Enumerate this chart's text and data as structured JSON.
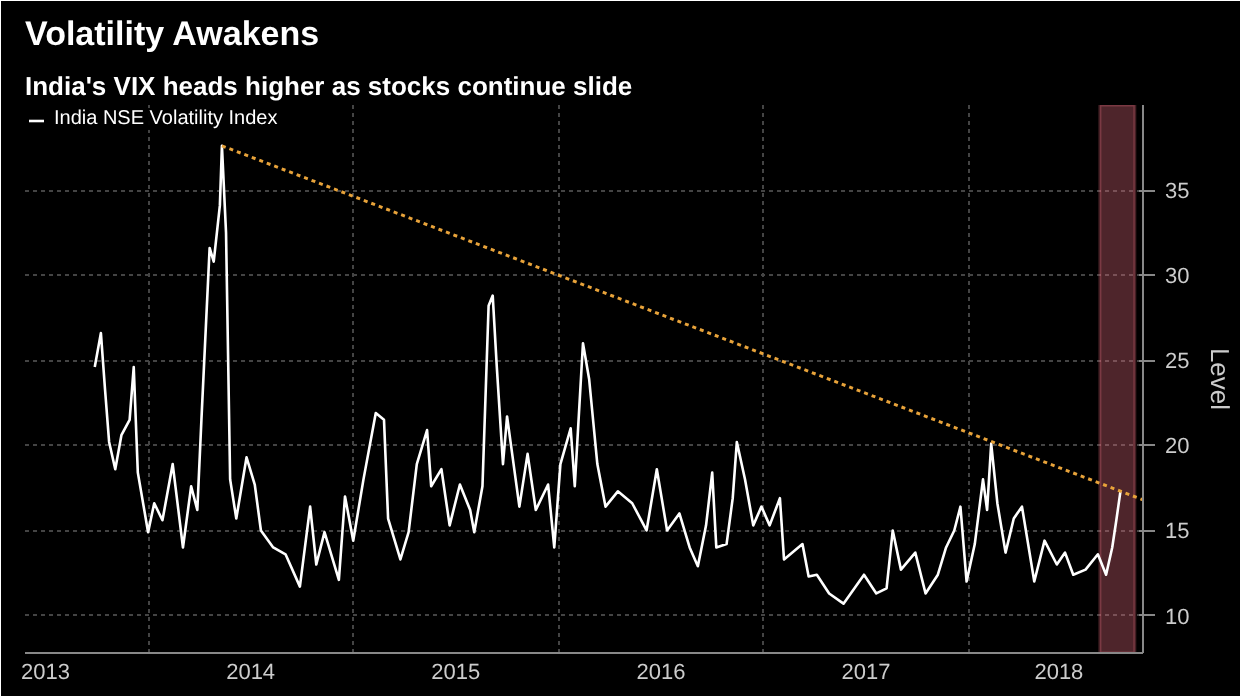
{
  "chart_data": {
    "type": "line",
    "title": "Volatility Awakens",
    "subtitle": "India's VIX heads higher as stocks continue slide",
    "ylabel": "Level",
    "xlim": [
      2013.4,
      2018.85
    ],
    "ylim": [
      7.8,
      40
    ],
    "xticks": [
      {
        "value": 2014,
        "label": null
      },
      {
        "value": 2015,
        "label": null
      },
      {
        "value": 2016,
        "label": null
      },
      {
        "value": 2017,
        "label": null
      },
      {
        "value": 2018,
        "label": null
      },
      {
        "value": 2013.5,
        "label": "2013"
      },
      {
        "value": 2014.5,
        "label": "2014"
      },
      {
        "value": 2015.5,
        "label": "2015"
      },
      {
        "value": 2016.5,
        "label": "2016"
      },
      {
        "value": 2017.5,
        "label": "2017"
      },
      {
        "value": 2018.44,
        "label": "2018"
      }
    ],
    "yticks": [
      10,
      15,
      20,
      25,
      30,
      35
    ],
    "grid": true,
    "legend": "top left",
    "series": [
      {
        "name": "India NSE Volatility Index",
        "color": "#ffffff",
        "x": [
          2013.74,
          2013.77,
          2013.79,
          2013.81,
          2013.84,
          2013.87,
          2013.91,
          2013.93,
          2013.95,
          2014.0,
          2014.03,
          2014.07,
          2014.12,
          2014.17,
          2014.21,
          2014.24,
          2014.26,
          2014.3,
          2014.32,
          2014.35,
          2014.36,
          2014.38,
          2014.4,
          2014.43,
          2014.48,
          2014.52,
          2014.55,
          2014.61,
          2014.67,
          2014.74,
          2014.79,
          2014.82,
          2014.86,
          2014.93,
          2014.96,
          2015.0,
          2015.05,
          2015.11,
          2015.15,
          2015.17,
          2015.23,
          2015.27,
          2015.31,
          2015.36,
          2015.38,
          2015.43,
          2015.47,
          2015.52,
          2015.57,
          2015.59,
          2015.63,
          2015.66,
          2015.68,
          2015.7,
          2015.73,
          2015.75,
          2015.81,
          2015.85,
          2015.89,
          2015.95,
          2015.98,
          2016.01,
          2016.06,
          2016.08,
          2016.12,
          2016.15,
          2016.19,
          2016.23,
          2016.29,
          2016.36,
          2016.43,
          2016.48,
          2016.53,
          2016.59,
          2016.64,
          2016.68,
          2016.72,
          2016.75,
          2016.77,
          2016.82,
          2016.85,
          2016.87,
          2016.91,
          2016.95,
          2016.99,
          2017.03,
          2017.08,
          2017.1,
          2017.19,
          2017.22,
          2017.26,
          2017.32,
          2017.39,
          2017.49,
          2017.55,
          2017.6,
          2017.63,
          2017.67,
          2017.74,
          2017.79,
          2017.85,
          2017.89,
          2017.93,
          2017.96,
          2017.99,
          2018.03,
          2018.07,
          2018.09,
          2018.11,
          2018.14,
          2018.18,
          2018.22,
          2018.26,
          2018.32,
          2018.37,
          2018.43,
          2018.47,
          2018.51,
          2018.57,
          2018.63,
          2018.67,
          2018.7,
          2018.72,
          2018.74
        ],
        "values": [
          24.6,
          26.6,
          23.3,
          20.2,
          18.6,
          20.6,
          21.5,
          24.6,
          18.4,
          14.9,
          16.6,
          15.6,
          18.9,
          14.0,
          17.6,
          16.2,
          21.5,
          31.6,
          30.8,
          34.1,
          37.6,
          32.5,
          18.0,
          15.7,
          19.3,
          17.7,
          15.0,
          14.0,
          13.6,
          11.7,
          16.4,
          13.0,
          14.9,
          12.1,
          17.0,
          14.4,
          18.0,
          21.9,
          21.5,
          15.7,
          13.3,
          14.9,
          18.9,
          20.9,
          17.6,
          18.6,
          15.3,
          17.7,
          16.2,
          14.9,
          17.6,
          28.2,
          28.8,
          24.6,
          18.9,
          21.7,
          16.4,
          19.5,
          16.2,
          17.7,
          14.0,
          18.9,
          21.0,
          17.6,
          26.0,
          23.9,
          18.9,
          16.4,
          17.3,
          16.6,
          15.0,
          18.6,
          15.0,
          16.0,
          14.0,
          12.9,
          15.3,
          18.4,
          14.0,
          14.2,
          16.9,
          20.2,
          18.0,
          15.3,
          16.4,
          15.3,
          16.9,
          13.3,
          14.2,
          12.3,
          12.4,
          11.3,
          10.7,
          12.4,
          11.3,
          11.6,
          15.0,
          12.7,
          13.7,
          11.3,
          12.4,
          14.0,
          15.0,
          16.4,
          12.0,
          14.2,
          18.0,
          16.2,
          20.1,
          16.6,
          13.7,
          15.7,
          16.4,
          12.0,
          14.4,
          13.0,
          13.7,
          12.4,
          12.7,
          13.6,
          12.4,
          14.0,
          15.6,
          17.3
        ]
      },
      {
        "color": "#e8a33a",
        "line_style": "dotted",
        "x": [
          2014.36,
          2018.85
        ],
        "values": [
          37.6,
          16.8
        ]
      }
    ],
    "bands": [
      {
        "axis": "x",
        "from": 2018.64,
        "to": 2018.81,
        "color": "#e06a7a"
      }
    ]
  }
}
